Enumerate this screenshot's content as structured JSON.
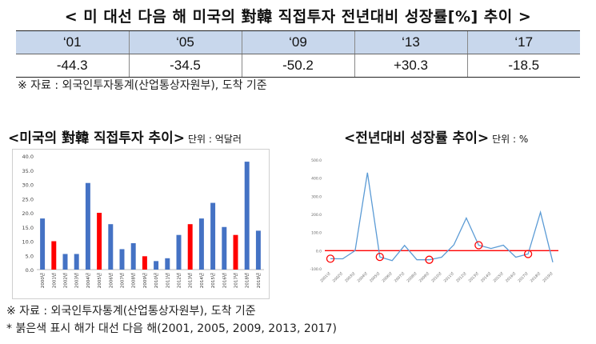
{
  "page_title": "< 미 대선 다음 해 미국의 對韓 직접투자 전년대비 성장률[%] 추이 >",
  "summary_table": {
    "headers": [
      "‘01",
      "‘05",
      "‘09",
      "‘13",
      "‘17"
    ],
    "values": [
      "-44.3",
      "-34.5",
      "-50.2",
      "+30.3",
      "-18.5"
    ]
  },
  "source_note": "※ 자료 : 외국인투자통계(산업통상자원부), 도착 기준",
  "bar_chart_heading": "<미국의 對韓 직접투자 추이>",
  "bar_chart_unit": "단위 : 억달러",
  "line_chart_heading": "<전년대비 성장률 추이>",
  "line_chart_unit": "단위 : %",
  "footnotes": {
    "source": "※ 자료 : 외국인투자통계(산업통상자원부), 도착 기준",
    "highlight": "* 붉은색 표시 해가 대선 다음 해(2001, 2005, 2009, 2013, 2017)"
  },
  "colors": {
    "normal_bar": "#4472c4",
    "highlight_bar": "#ff0000",
    "line": "#5b9bd5",
    "zero_line": "#ff0000",
    "header_fill": "#c8d7ec"
  },
  "chart_data": [
    {
      "type": "bar",
      "title": "<미국의 對韓 직접투자 추이>",
      "unit": "단위 : 억달러",
      "categories": [
        "2000년",
        "2001년",
        "2002년",
        "2003년",
        "2004년",
        "2005년",
        "2006년",
        "2007년",
        "2008년",
        "2009년",
        "2010년",
        "2011년",
        "2012년",
        "2013년",
        "2014년",
        "2015년",
        "2016년",
        "2017년",
        "2018년",
        "2019년"
      ],
      "values": [
        18.0,
        10.0,
        5.5,
        5.5,
        30.5,
        20.0,
        16.0,
        7.2,
        9.3,
        4.7,
        3.0,
        4.0,
        12.2,
        16.0,
        18.0,
        23.5,
        15.0,
        12.2,
        38.0,
        13.7
      ],
      "highlight_categories": [
        "2001년",
        "2005년",
        "2009년",
        "2013년",
        "2017년"
      ],
      "y_ticks": [
        "0.0",
        "5.0",
        "10.0",
        "15.0",
        "20.0",
        "25.0",
        "30.0",
        "35.0",
        "40.0"
      ],
      "ylim": [
        0,
        40
      ]
    },
    {
      "type": "line",
      "title": "<전년대비 성장률 추이>",
      "unit": "단위 : %",
      "categories": [
        "2001년",
        "2002년",
        "2003년",
        "2004년",
        "2005년",
        "2006년",
        "2007년",
        "2008년",
        "2009년",
        "2010년",
        "2011년",
        "2012년",
        "2013년",
        "2014년",
        "2015년",
        "2016년",
        "2017년",
        "2018년",
        "2019년"
      ],
      "values": [
        -44.3,
        -45.0,
        0.0,
        430.0,
        -34.5,
        -55.0,
        29.0,
        -50.0,
        -50.2,
        -36.0,
        33.0,
        180.0,
        30.3,
        12.0,
        30.0,
        -36.0,
        -18.5,
        212.0,
        -64.0
      ],
      "highlight_categories": [
        "2001년",
        "2005년",
        "2009년",
        "2013년",
        "2017년"
      ],
      "y_ticks": [
        "-100.0",
        "0.0",
        "100.0",
        "200.0",
        "300.0",
        "400.0",
        "500.0"
      ],
      "ylim": [
        -100,
        500
      ]
    }
  ]
}
